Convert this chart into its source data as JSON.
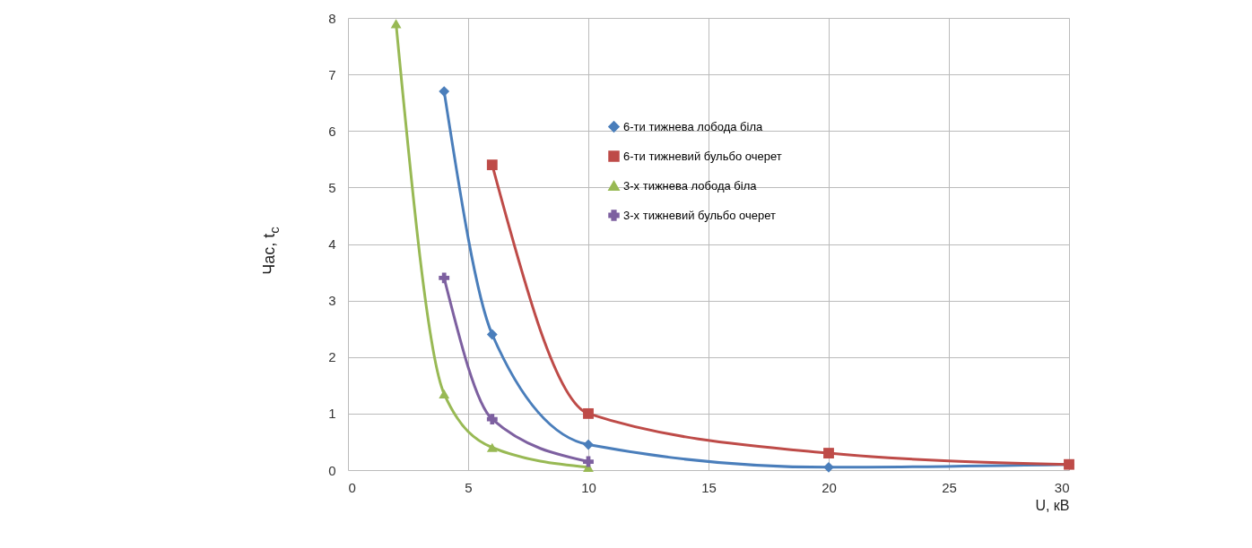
{
  "chart_data": {
    "type": "line",
    "xlabel": "U, кВ",
    "ylabel": "Час, t$_{c}$",
    "xlim": [
      0,
      30
    ],
    "xticks": [
      0,
      5,
      10,
      15,
      20,
      25,
      30
    ],
    "ylim": [
      0,
      8
    ],
    "yticks": [
      0,
      1,
      2,
      3,
      4,
      5,
      6,
      7,
      8
    ],
    "grid": true,
    "legend": "right",
    "line_style": "solid",
    "series": [
      {
        "name": "6-ти тижнева лобода біла",
        "color": "#4a7ebb",
        "marker": "diamond",
        "x": [
          4,
          6,
          10,
          20,
          30
        ],
        "values": [
          6.7,
          2.4,
          0.45,
          0.05,
          0.1
        ]
      },
      {
        "name": "6-ти тижневий бульбо очерет",
        "color": "#be4b48",
        "marker": "square",
        "x": [
          6,
          10,
          20,
          30
        ],
        "values": [
          5.4,
          1.0,
          0.3,
          0.1
        ]
      },
      {
        "name": "3-х тижнева лобода біла",
        "color": "#98b954",
        "marker": "triangle",
        "x": [
          2,
          4,
          6,
          10
        ],
        "values": [
          7.9,
          1.35,
          0.4,
          0.05
        ]
      },
      {
        "name": "3-х тижневий бульбо очерет",
        "color": "#7d60a0",
        "marker": "cross",
        "x": [
          4,
          6,
          10
        ],
        "values": [
          3.4,
          0.9,
          0.15
        ]
      }
    ]
  }
}
